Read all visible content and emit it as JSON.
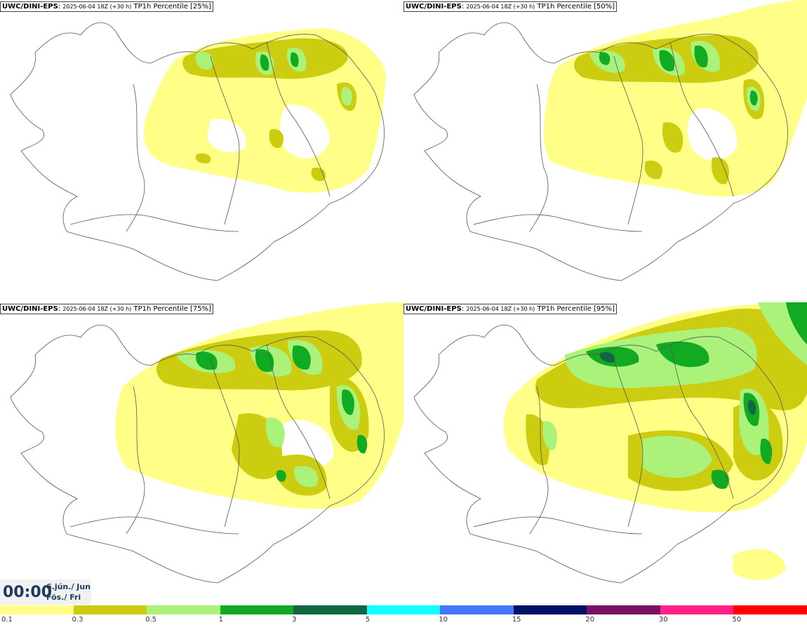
{
  "panels": [
    {
      "model": "UWC/DINI-EPS",
      "run": "2025-06-04 18Z (+30 h)",
      "field": "TP1h Percentile [25%]"
    },
    {
      "model": "UWC/DINI-EPS",
      "run": "2025-06-04 18Z (+30 h)",
      "field": "TP1h Percentile [50%]"
    },
    {
      "model": "UWC/DINI-EPS",
      "run": "2025-06-04 18Z (+30 h)",
      "field": "TP1h Percentile [75%]"
    },
    {
      "model": "UWC/DINI-EPS",
      "run": "2025-06-04 18Z (+30 h)",
      "field": "TP1h Percentile [95%]"
    }
  ],
  "timebox": {
    "time": "00:00",
    "date_line1": "6.jún./ Jun",
    "date_line2": "Fös./ Fri"
  },
  "legend": {
    "levels": [
      "0.1",
      "0.3",
      "0.5",
      "1",
      "3",
      "5",
      "10",
      "15",
      "20",
      "30",
      "50"
    ],
    "colors": [
      "#ffff88",
      "#cccc11",
      "#aaf27a",
      "#11aa22",
      "#116644",
      "#11ffff",
      "#4477ff",
      "#001166",
      "#771166",
      "#ff2288",
      "#ff0000"
    ]
  }
}
